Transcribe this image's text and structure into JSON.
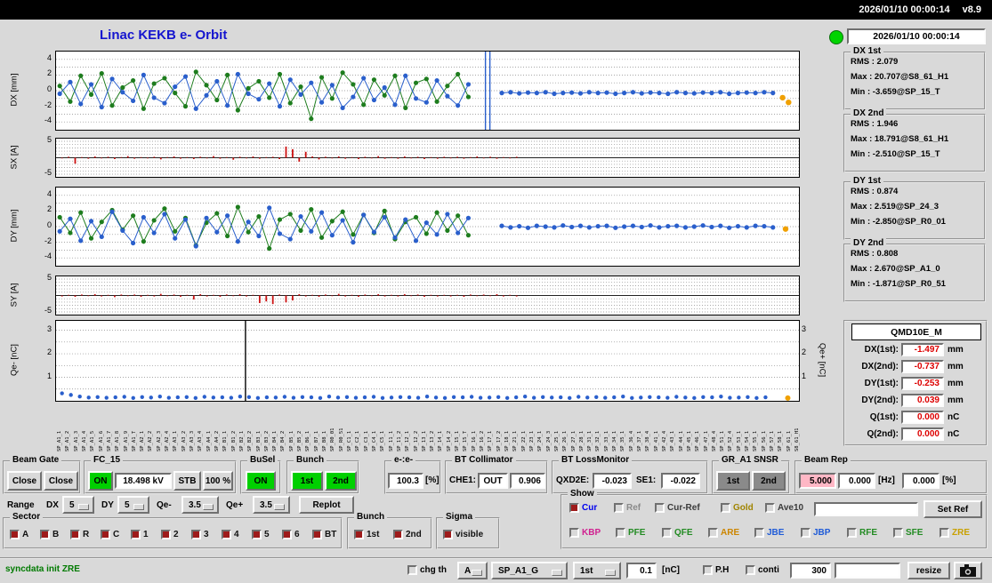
{
  "topbar": {
    "datetime": "2026/01/10 00:00:14",
    "version": "v8.9"
  },
  "header": {
    "title": "Linac KEKB e- Orbit"
  },
  "panel": {
    "timestamp": "2026/01/10 00:00:14"
  },
  "colors": {
    "on_green": "#00d000",
    "alarm_pink": "#ffb7c5",
    "check_red": "#9e1b1b",
    "title_blue": "#1515cf",
    "value_red": "#dd0000",
    "msg_green": "#007a00"
  },
  "stats": {
    "dx1": {
      "label": "DX 1st",
      "rms": "RMS : 2.079",
      "max": "Max : 20.707@S8_61_H1",
      "min": "Min : -3.659@SP_15_T"
    },
    "dx2": {
      "label": "DX 2nd",
      "rms": "RMS : 1.946",
      "max": "Max : 18.791@S8_61_H1",
      "min": "Min : -2.510@SP_15_T"
    },
    "dy1": {
      "label": "DY 1st",
      "rms": "RMS : 0.874",
      "max": "Max : 2.519@SP_24_3",
      "min": "Min : -2.850@SP_R0_01"
    },
    "dy2": {
      "label": "DY 2nd",
      "rms": "RMS : 0.808",
      "max": "Max : 2.670@SP_A1_0",
      "min": "Min : -1.871@SP_R0_51"
    }
  },
  "qmd": {
    "title": "QMD10E_M",
    "rows": [
      {
        "label": "DX(1st):",
        "value": "-1.497",
        "unit": "mm"
      },
      {
        "label": "DX(2nd):",
        "value": "-0.737",
        "unit": "mm"
      },
      {
        "label": "DY(1st):",
        "value": "-0.253",
        "unit": "mm"
      },
      {
        "label": "DY(2nd):",
        "value": "0.039",
        "unit": "mm"
      },
      {
        "label": "Q(1st):",
        "value": "0.000",
        "unit": "nC"
      },
      {
        "label": "Q(2nd):",
        "value": "0.000",
        "unit": "nC"
      }
    ]
  },
  "beam_gate": {
    "label": "Beam Gate",
    "btn1": "Close",
    "btn2": "Close"
  },
  "fc15": {
    "label": "FC_15",
    "on": "ON",
    "kv": "18.498 kV",
    "stb": "STB",
    "pct": "100 %"
  },
  "busel": {
    "label": "BuSel",
    "on": "ON"
  },
  "bunch_sel": {
    "label": "Bunch",
    "b1": "1st",
    "b2": "2nd"
  },
  "ee": {
    "label": "e-:e-",
    "value": "100.3",
    "unit": "[%]"
  },
  "btcol": {
    "label": "BT Collimator",
    "che1_label": "CHE1:",
    "che1": "OUT",
    "value": "0.906"
  },
  "btloss": {
    "label": "BT LossMonitor",
    "qxd2e_label": "QXD2E:",
    "qxd2e": "-0.023",
    "se1_label": "SE1:",
    "se1": "-0.022"
  },
  "gra1": {
    "label": "GR_A1 SNSR",
    "b1": "1st",
    "b2": "2nd"
  },
  "beamrep": {
    "label": "Beam Rep",
    "v1": "5.000",
    "v2": "0.000",
    "hz": "[Hz]",
    "v3": "0.000",
    "pct": "[%]"
  },
  "range": {
    "label": "Range",
    "dx_label": "DX",
    "dx": "5",
    "dy_label": "DY",
    "dy": "5",
    "qem_label": "Qe-",
    "qem": "3.5",
    "qep_label": "Qe+",
    "qep": "3.5",
    "replot": "Replot"
  },
  "show": {
    "label": "Show",
    "set_ref": "Set Ref",
    "row1": [
      {
        "label": "Cur",
        "color": "#0000ee",
        "checked": true
      },
      {
        "label": "Ref",
        "color": "#8a8a8a",
        "checked": false
      },
      {
        "label": "Cur-Ref",
        "color": "#3a3a3a",
        "checked": false
      },
      {
        "label": "Gold",
        "color": "#a08400",
        "checked": false
      },
      {
        "label": "Ave10",
        "color": "#3a3a3a",
        "checked": false
      }
    ],
    "row2": [
      {
        "label": "KBP",
        "color": "#d02090",
        "checked": false
      },
      {
        "label": "PFE",
        "color": "#228b22",
        "checked": false
      },
      {
        "label": "QFE",
        "color": "#228b22",
        "checked": false
      },
      {
        "label": "ARE",
        "color": "#cc8500",
        "checked": false
      },
      {
        "label": "JBE",
        "color": "#1e5ad7",
        "checked": false
      },
      {
        "label": "JBP",
        "color": "#1e5ad7",
        "checked": false
      },
      {
        "label": "RFE",
        "color": "#228b22",
        "checked": false
      },
      {
        "label": "SFE",
        "color": "#228b22",
        "checked": false
      },
      {
        "label": "ZRE",
        "color": "#c8a000",
        "checked": false
      }
    ]
  },
  "sector": {
    "label": "Sector",
    "items": [
      "A",
      "B",
      "R",
      "C",
      "1",
      "2",
      "3",
      "4",
      "5",
      "6",
      "BT"
    ]
  },
  "bunch_chk": {
    "label": "Bunch",
    "items": [
      "1st",
      "2nd"
    ]
  },
  "sigma": {
    "label": "Sigma",
    "items": [
      "visible"
    ]
  },
  "statusbar": {
    "message": "syncdata init ZRE",
    "chg_th": "chg th",
    "sel_a": "A",
    "sel_sp": "SP_A1_G",
    "sel_1st": "1st",
    "th": "0.1",
    "nc": "[nC]",
    "ph": "P.H",
    "conti": "conti",
    "num": "300",
    "blank": "",
    "resize": "resize"
  },
  "bpm_labels": [
    "SP_A1_1",
    "SP_A1_2",
    "SP_A1_3",
    "SP_A1_4",
    "SP_A1_5",
    "SP_A1_6",
    "SP_A1_7",
    "SP_A1_8",
    "SP_A1_9",
    "SP_A1_T",
    "SP_A2_1",
    "SP_A2_2",
    "SP_A2_3",
    "SP_A2_4",
    "SP_A3_1",
    "SP_A3_2",
    "SP_A3_3",
    "SP_A3_4",
    "SP_A4_1",
    "SP_A4_2",
    "SP_B1_1",
    "SP_B1_2",
    "SP_B2_1",
    "SP_B2_2",
    "SP_B3_1",
    "SP_B3_2",
    "SP_B4_1",
    "SP_B4_2",
    "SP_B5_1",
    "SP_B5_2",
    "SP_B6_1",
    "SP_B7_1",
    "SP_B8_1",
    "SP_R0_01",
    "SP_R0_51",
    "SP_C1_1",
    "SP_C2_1",
    "SP_C3_1",
    "SP_C4_1",
    "SP_C5_1",
    "SP_11_1",
    "SP_11_2",
    "SP_12_1",
    "SP_12_2",
    "SP_13_1",
    "SP_13_2",
    "SP_14_1",
    "SP_14_2",
    "SP_15_1",
    "SP_15_T",
    "SP_16_1",
    "SP_16_2",
    "SP_17_1",
    "SP_17_2",
    "SP_18_1",
    "SP_21_1",
    "SP_22_1",
    "SP_23_1",
    "SP_24_1",
    "SP_24_3",
    "SP_25_1",
    "SP_26_1",
    "SP_27_1",
    "SP_28_1",
    "SP_31_1",
    "SP_32_1",
    "SP_33_1",
    "SP_34_1",
    "SP_35_1",
    "SP_36_4",
    "SP_37_1",
    "SP_38_4",
    "SP_41_1",
    "SP_42_4",
    "SP_43_1",
    "SP_44_1",
    "SP_45_1",
    "SP_46_1",
    "SP_47_1",
    "SP_48_4",
    "SP_51_1",
    "SP_52_4",
    "SP_53_1",
    "SP_54_1",
    "SP_55_1",
    "SP_56_1",
    "SP_57_1",
    "SP_58_1",
    "SP_61_1",
    "S8_61_H1"
  ],
  "chart_data": [
    {
      "id": "dx",
      "type": "line",
      "title": "DX orbit",
      "ylabel": "DX [mm]",
      "ylim": [
        -5,
        5
      ],
      "yticks": [
        4,
        2,
        0,
        -2,
        -4
      ],
      "grid_step": 1,
      "vlines": [
        {
          "x": 0.578,
          "color": "#2a5fcc"
        },
        {
          "x": 0.584,
          "color": "#2a5fcc"
        }
      ],
      "series": [
        {
          "name": "1st",
          "color": "#1e7d1e",
          "x0": 0.005,
          "x1": 0.555,
          "marker": 2.6,
          "line": true,
          "values": [
            0.6,
            -1.4,
            1.9,
            -0.5,
            2.2,
            -1.9,
            0.4,
            1.3,
            -2.3,
            0.9,
            1.6,
            -0.3,
            -2.0,
            2.4,
            0.7,
            -1.2,
            2.0,
            -2.5,
            0.3,
            1.2,
            -0.9,
            2.1,
            -1.6,
            0.5,
            -3.6,
            1.7,
            -1.0,
            2.3,
            0.8,
            -1.8,
            1.4,
            -0.6,
            1.9,
            -2.2,
            1.0,
            1.5,
            -1.4,
            0.6,
            2.1,
            -0.8
          ]
        },
        {
          "name": "2nd",
          "color": "#2a5fcc",
          "x0": 0.005,
          "x1": 0.555,
          "marker": 2.6,
          "line": true,
          "values": [
            -0.4,
            1.1,
            -1.7,
            0.8,
            -2.1,
            1.5,
            -0.2,
            -1.3,
            2.0,
            -0.9,
            -1.6,
            0.5,
            1.8,
            -2.3,
            -0.6,
            1.2,
            -1.9,
            2.1,
            -0.4,
            -1.1,
            0.9,
            -2.0,
            1.4,
            -0.5,
            1.0,
            -1.5,
            0.7,
            -2.2,
            -0.8,
            1.6,
            -1.2,
            0.4,
            -1.8,
            1.9,
            -1.0,
            -1.5,
            1.3,
            -0.7,
            -1.9,
            0.8
          ]
        },
        {
          "name": "2nd-right",
          "color": "#2a5fcc",
          "x0": 0.6,
          "x1": 0.965,
          "marker": 2.6,
          "line": true,
          "values": [
            -0.3,
            -0.2,
            -0.35,
            -0.25,
            -0.3,
            -0.2,
            -0.4,
            -0.3,
            -0.25,
            -0.35,
            -0.2,
            -0.3,
            -0.25,
            -0.4,
            -0.3,
            -0.2,
            -0.35,
            -0.25,
            -0.3,
            -0.4,
            -0.2,
            -0.3,
            -0.35,
            -0.25,
            -0.3,
            -0.2,
            -0.4,
            -0.3,
            -0.25,
            -0.3,
            -0.2,
            -0.3
          ]
        },
        {
          "name": "selected-monitor",
          "color": "#f0a000",
          "x0": 0.978,
          "x1": 0.986,
          "marker": 3.2,
          "line": false,
          "values": [
            -0.9,
            -1.5
          ]
        }
      ]
    },
    {
      "id": "sx",
      "type": "bar",
      "title": "SX steering",
      "ylabel": "SX [A]",
      "ylim": [
        -5.8,
        5.8
      ],
      "yticks": [
        5,
        -5
      ],
      "grid_step": 1,
      "series": [
        {
          "name": "sx",
          "color": "#cc1111",
          "x0": 0.008,
          "x1": 0.62,
          "values": [
            -0.2,
            0.3,
            -1.8,
            0.2,
            -0.3,
            0.4,
            -0.2,
            0.3,
            -0.4,
            0.2,
            0.5,
            -0.3,
            0.2,
            -0.2,
            0.3,
            -0.5,
            0.2,
            0.4,
            -0.3,
            0.2,
            -0.4,
            0.3,
            -0.2,
            0.5,
            -0.3,
            0.2,
            -0.6,
            0.3,
            -0.2,
            0.4,
            -0.3,
            0.2,
            0.3,
            -0.4,
            3.4,
            2.6,
            -1.2,
            1.8,
            0.4,
            -0.5,
            0.3,
            -0.2,
            0.4,
            -0.3,
            0.2,
            -0.4,
            0.3,
            -0.2,
            0.5,
            -0.3,
            0.2,
            -0.3,
            0.4,
            -0.2,
            0.3,
            -0.4,
            0.2,
            -0.3,
            0.3,
            -0.2,
            0.3,
            -0.3,
            0.2,
            0.4,
            -0.2,
            0.3,
            -0.3,
            0.2,
            -0.2,
            0.3
          ]
        }
      ]
    },
    {
      "id": "dy",
      "type": "line",
      "title": "DY orbit",
      "ylabel": "DY [mm]",
      "ylim": [
        -5,
        5
      ],
      "yticks": [
        4,
        2,
        0,
        -2,
        -4
      ],
      "grid_step": 1,
      "series": [
        {
          "name": "1st",
          "color": "#1e7d1e",
          "x0": 0.005,
          "x1": 0.555,
          "marker": 2.6,
          "line": true,
          "values": [
            1.2,
            -0.8,
            1.8,
            -1.5,
            0.6,
            2.1,
            -0.4,
            1.4,
            -1.9,
            0.8,
            2.3,
            -0.6,
            1.1,
            -2.4,
            0.5,
            1.7,
            -1.2,
            2.5,
            -0.7,
            1.3,
            -2.8,
            0.9,
            1.6,
            -0.5,
            2.2,
            -1.4,
            0.7,
            1.9,
            -1.0,
            1.5,
            -0.8,
            2.0,
            -1.6,
            0.6,
            1.2,
            -0.9,
            1.8,
            -0.5,
            1.4,
            -1.1
          ]
        },
        {
          "name": "2nd",
          "color": "#2a5fcc",
          "x0": 0.005,
          "x1": 0.555,
          "marker": 2.6,
          "line": true,
          "values": [
            -0.6,
            1.0,
            -1.8,
            0.7,
            -1.3,
            1.9,
            -0.5,
            -2.1,
            1.2,
            -0.8,
            1.6,
            -1.5,
            0.9,
            -2.5,
            1.1,
            -0.7,
            1.4,
            -1.9,
            0.6,
            -1.2,
            2.4,
            -0.9,
            -1.6,
            1.3,
            -0.6,
            1.8,
            -1.1,
            0.8,
            -2.0,
            1.5,
            -0.7,
            1.2,
            -1.4,
            0.9,
            -1.8,
            0.5,
            -1.0,
            1.6,
            -0.8,
            1.1
          ]
        },
        {
          "name": "2nd-right",
          "color": "#2a5fcc",
          "x0": 0.6,
          "x1": 0.965,
          "marker": 2.6,
          "line": true,
          "values": [
            0.1,
            -0.1,
            0.05,
            -0.15,
            0.1,
            0.0,
            -0.1,
            0.15,
            -0.05,
            0.1,
            -0.1,
            0.05,
            0.1,
            -0.15,
            0.0,
            0.1,
            -0.05,
            0.15,
            -0.1,
            0.05,
            0.1,
            -0.1,
            0.0,
            0.15,
            -0.05,
            0.1,
            -0.15,
            0.05,
            -0.1,
            0.1,
            0.05,
            -0.1
          ]
        },
        {
          "name": "selected-monitor",
          "color": "#f0a000",
          "x0": 0.982,
          "x1": 0.982,
          "marker": 3.2,
          "line": false,
          "values": [
            -0.3
          ]
        }
      ]
    },
    {
      "id": "sy",
      "type": "bar",
      "title": "SY steering",
      "ylabel": "SY [A]",
      "ylim": [
        -5.8,
        5.8
      ],
      "yticks": [
        5,
        -5
      ],
      "grid_step": 1,
      "series": [
        {
          "name": "sy",
          "color": "#cc1111",
          "x0": 0.008,
          "x1": 0.62,
          "values": [
            -0.3,
            0.2,
            -0.4,
            0.3,
            -0.2,
            0.4,
            -0.3,
            0.2,
            -0.5,
            0.3,
            -0.2,
            0.3,
            -0.4,
            0.2,
            -0.3,
            0.5,
            -0.2,
            0.3,
            -0.4,
            0.2,
            -1.2,
            0.4,
            -0.3,
            0.2,
            -0.4,
            0.3,
            -0.2,
            0.4,
            -0.3,
            0.2,
            -2.3,
            -1.8,
            -2.6,
            0.3,
            -2.1,
            -1.5,
            0.4,
            -0.3,
            0.2,
            -0.4,
            0.3,
            -0.2,
            0.5,
            -0.3,
            0.2,
            -0.4,
            0.3,
            -0.2,
            0.4,
            -0.3,
            0.2,
            -0.3,
            0.4,
            -0.2,
            0.3,
            -0.4,
            0.2,
            -0.3,
            0.2,
            -0.3,
            0.2,
            -0.4,
            0.3,
            -0.2,
            0.3,
            -0.2,
            0.4,
            -0.3,
            0.2,
            -0.3
          ]
        }
      ]
    },
    {
      "id": "qe",
      "type": "scatter",
      "title": "Bunch charge",
      "ylabel": "Qe- [nC]",
      "ylabel_right": "Qe+ [nC]",
      "ylim": [
        0,
        3.4
      ],
      "yticks": [
        3,
        2,
        1
      ],
      "yticks_right": [
        3,
        2,
        1
      ],
      "grid_step": 0.5,
      "vlines": [
        {
          "x": 0.255,
          "color": "#000000"
        }
      ],
      "series": [
        {
          "name": "qe-",
          "color": "#2a5fcc",
          "x0": 0.008,
          "x1": 0.955,
          "marker": 2.2,
          "line": false,
          "values": [
            0.32,
            0.25,
            0.18,
            0.14,
            0.16,
            0.13,
            0.15,
            0.17,
            0.12,
            0.16,
            0.14,
            0.18,
            0.13,
            0.15,
            0.16,
            0.12,
            0.17,
            0.14,
            0.15,
            0.13,
            0.18,
            0.16,
            0.12,
            0.15,
            0.14,
            0.17,
            0.13,
            0.16,
            0.15,
            0.12,
            0.18,
            0.14,
            0.16,
            0.13,
            0.15,
            0.17,
            0.12,
            0.14,
            0.16,
            0.15,
            0.13,
            0.18,
            0.14,
            0.12,
            0.16,
            0.15,
            0.17,
            0.13,
            0.14,
            0.16,
            0.12,
            0.15,
            0.18,
            0.13,
            0.16,
            0.14,
            0.15,
            0.12,
            0.17,
            0.14,
            0.16,
            0.13,
            0.15,
            0.18,
            0.12,
            0.14,
            0.16,
            0.15,
            0.13,
            0.17,
            0.14,
            0.12,
            0.16,
            0.15,
            0.18,
            0.13,
            0.14,
            0.16,
            0.12,
            0.15
          ]
        },
        {
          "name": "selected-monitor",
          "color": "#f0a000",
          "x0": 0.985,
          "x1": 0.985,
          "marker": 3.0,
          "line": false,
          "values": [
            0.12
          ]
        }
      ]
    }
  ]
}
